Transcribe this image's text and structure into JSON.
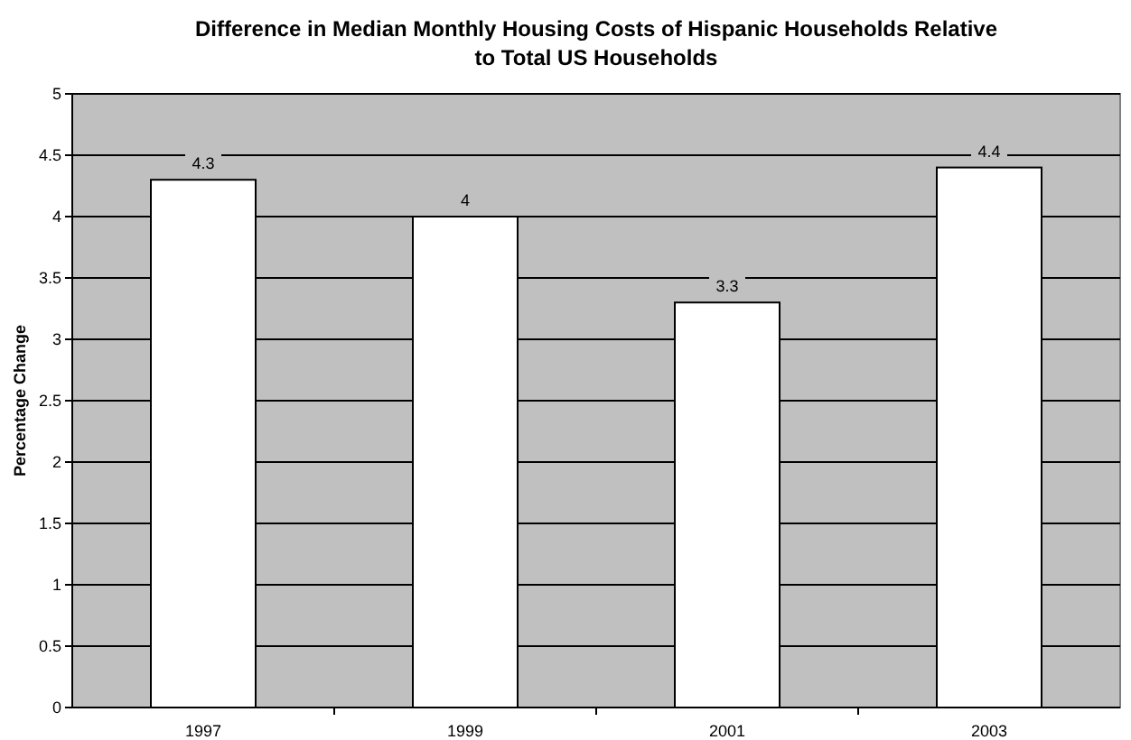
{
  "chart_data": {
    "type": "bar",
    "title": "Difference in Median Monthly Housing Costs of Hispanic Households Relative to Total US Households",
    "ylabel": "Percentage Change",
    "categories": [
      "1997",
      "1999",
      "2001",
      "2003"
    ],
    "values": [
      4.3,
      4,
      3.3,
      4.4
    ],
    "color": "#ffffff",
    "ylim": [
      0,
      5
    ],
    "yticks": [
      0,
      0.5,
      1,
      1.5,
      2,
      2.5,
      3,
      3.5,
      4,
      4.5,
      5
    ],
    "grid": "y",
    "data_labels": true
  }
}
